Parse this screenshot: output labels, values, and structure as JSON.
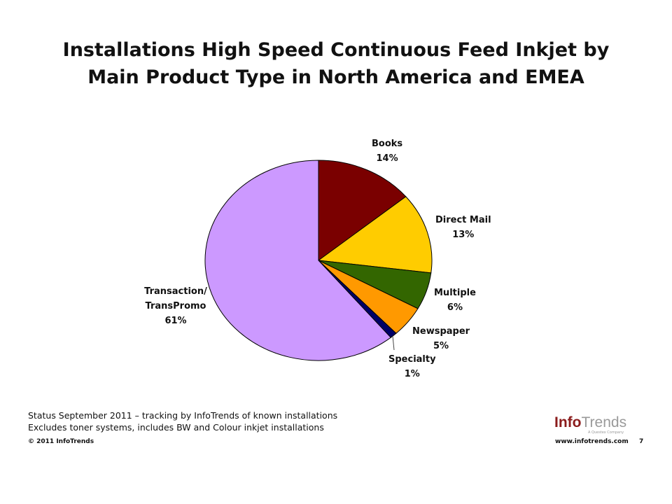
{
  "slide": {
    "title_line1": "Installations High Speed Continuous Feed Inkjet by",
    "title_line2": "Main Product Type in North America and EMEA",
    "footnote_line1": "Status September 2011 – tracking by InfoTrends of known installations",
    "footnote_line2": "Excludes toner systems, includes BW and Colour inkjet installations",
    "copyright": "© 2011 InfoTrends",
    "logo_info": "Info",
    "logo_trends": "Trends",
    "logo_tagline": "A Questex Company",
    "website": "www.infotrends.com",
    "page_number": "7"
  },
  "chart_data": {
    "type": "pie",
    "title": "Installations High Speed Continuous Feed Inkjet by Main Product Type in North America and EMEA",
    "slices": [
      {
        "name": "Books",
        "value": 14,
        "label": "14%",
        "color": "#7a0000"
      },
      {
        "name": "Direct Mail",
        "value": 13,
        "label": "13%",
        "color": "#ffcc00"
      },
      {
        "name": "Multiple",
        "value": 6,
        "label": "6%",
        "color": "#336600"
      },
      {
        "name": "Newspaper",
        "value": 5,
        "label": "5%",
        "color": "#ff9900"
      },
      {
        "name": "Specialty",
        "value": 1,
        "label": "1%",
        "color": "#000066"
      },
      {
        "name": "Transaction/ TransPromo",
        "value": 61,
        "label": "61%",
        "color": "#cc99ff"
      }
    ],
    "start_angle_deg": 0,
    "direction": "clockwise"
  }
}
